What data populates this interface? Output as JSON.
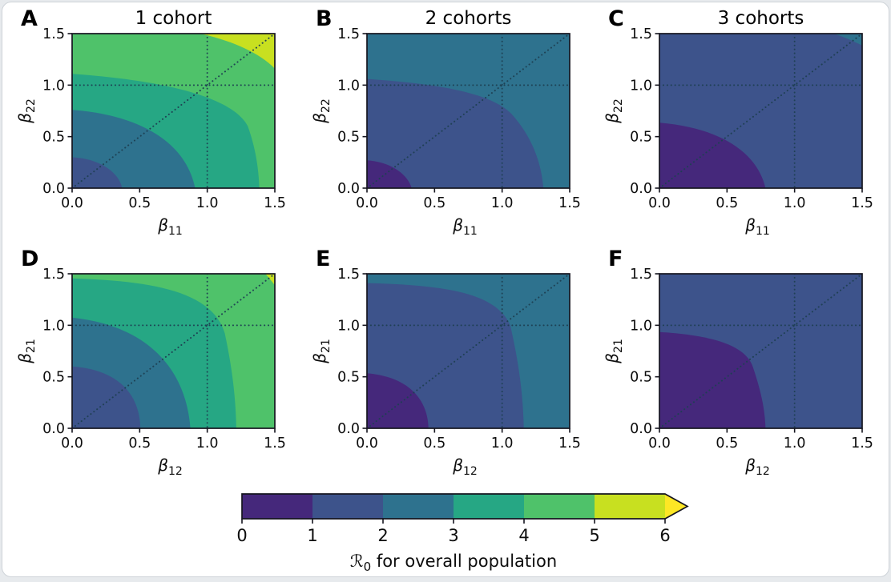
{
  "figure": {
    "background": "#ffffff",
    "border_color": "#ced3d8"
  },
  "chart_data": {
    "type": "contour-grid",
    "rows": 2,
    "cols": 3,
    "contour_levels": [
      1,
      2,
      3,
      4,
      5,
      6
    ],
    "band_colors": [
      "#45287b",
      "#3d538b",
      "#2e728e",
      "#26a784",
      "#4fc26a",
      "#c8e020"
    ],
    "over_color": "#fde725",
    "spine_color": "#15151f",
    "guide_color": "#1d3f52",
    "axis": {
      "range": [
        0,
        1.5
      ],
      "tick_values": [
        0,
        0.5,
        1.0,
        1.5
      ],
      "tick_labels": [
        "0.0",
        "0.5",
        "1.0",
        "1.5"
      ]
    },
    "guides": {
      "vline_x": 1.0,
      "hline_y": 1.0,
      "diagonal": true
    },
    "panels": [
      {
        "letter": "A",
        "title": "1 cohort",
        "xlabel_sym": "β",
        "xlabel_sub": "11",
        "ylabel_sym": "β",
        "ylabel_sub": "22",
        "fills": [
          {
            "kind": "base",
            "band": 5
          },
          {
            "kind": "low",
            "band": 4,
            "level_below": 5,
            "curve": [
              [
                0.95,
                1.5
              ],
              [
                1.18,
                1.43
              ],
              [
                1.38,
                1.32
              ],
              [
                1.5,
                1.16
              ]
            ]
          },
          {
            "kind": "low",
            "band": 3,
            "level_below": 4,
            "curve": [
              [
                0,
                1.11
              ],
              [
                0.75,
                1.04
              ],
              [
                1.2,
                0.86
              ],
              [
                1.3,
                0.6
              ],
              [
                1.36,
                0.38
              ],
              [
                1.38,
                0.18
              ],
              [
                1.385,
                0
              ]
            ]
          },
          {
            "kind": "low",
            "band": 2,
            "level_below": 3,
            "curve": [
              [
                0,
                0.76
              ],
              [
                0.5,
                0.71
              ],
              [
                0.84,
                0.45
              ],
              [
                0.91,
                0
              ]
            ]
          },
          {
            "kind": "low",
            "band": 1,
            "level_below": 2,
            "curve": [
              [
                0,
                0.3
              ],
              [
                0.2,
                0.285
              ],
              [
                0.345,
                0.16
              ],
              [
                0.37,
                0
              ]
            ]
          }
        ]
      },
      {
        "letter": "B",
        "title": "2 cohorts",
        "xlabel_sym": "β",
        "xlabel_sub": "11",
        "ylabel_sym": "β",
        "ylabel_sub": "22",
        "fills": [
          {
            "kind": "base",
            "band": 2
          },
          {
            "kind": "low",
            "band": 1,
            "level_below": 2,
            "curve": [
              [
                0,
                1.06
              ],
              [
                0.55,
                1.01
              ],
              [
                0.92,
                0.92
              ],
              [
                1.07,
                0.72
              ],
              [
                1.22,
                0.5
              ],
              [
                1.29,
                0.25
              ],
              [
                1.305,
                0
              ]
            ]
          },
          {
            "kind": "low",
            "band": 0,
            "level_below": 1,
            "curve": [
              [
                0,
                0.27
              ],
              [
                0.17,
                0.255
              ],
              [
                0.3,
                0.14
              ],
              [
                0.33,
                0
              ]
            ]
          }
        ]
      },
      {
        "letter": "C",
        "title": "3 cohorts",
        "xlabel_sym": "β",
        "xlabel_sub": "11",
        "ylabel_sym": "β",
        "ylabel_sub": "22",
        "fills": [
          {
            "kind": "base",
            "band": 1
          },
          {
            "kind": "corner",
            "band": 2,
            "level_above": 2,
            "curve": [
              [
                1.29,
                1.5
              ],
              [
                1.36,
                1.47
              ],
              [
                1.43,
                1.43
              ],
              [
                1.5,
                1.385
              ]
            ]
          },
          {
            "kind": "low",
            "band": 0,
            "level_below": 1,
            "curve": [
              [
                0,
                0.635
              ],
              [
                0.44,
                0.585
              ],
              [
                0.72,
                0.36
              ],
              [
                0.785,
                0
              ]
            ]
          }
        ]
      },
      {
        "letter": "D",
        "title": "",
        "xlabel_sym": "β",
        "xlabel_sub": "12",
        "ylabel_sym": "β",
        "ylabel_sub": "21",
        "fills": [
          {
            "kind": "base",
            "band": 5
          },
          {
            "kind": "low",
            "band": 4,
            "level_below": 5,
            "curve": [
              [
                1.43,
                1.5
              ],
              [
                1.455,
                1.465
              ],
              [
                1.475,
                1.43
              ],
              [
                1.5,
                1.39
              ]
            ]
          },
          {
            "kind": "low",
            "band": 3,
            "level_below": 4,
            "curve": [
              [
                0,
                1.455
              ],
              [
                0.62,
                1.43
              ],
              [
                1.04,
                1.32
              ],
              [
                1.13,
                0.92
              ],
              [
                1.19,
                0.55
              ],
              [
                1.21,
                0.28
              ],
              [
                1.215,
                0
              ]
            ]
          },
          {
            "kind": "low",
            "band": 2,
            "level_below": 3,
            "curve": [
              [
                0,
                1.075
              ],
              [
                0.54,
                1.0
              ],
              [
                0.84,
                0.6
              ],
              [
                0.875,
                0
              ]
            ]
          },
          {
            "kind": "low",
            "band": 1,
            "level_below": 2,
            "curve": [
              [
                0,
                0.6
              ],
              [
                0.37,
                0.565
              ],
              [
                0.5,
                0.3
              ],
              [
                0.505,
                0
              ]
            ]
          }
        ]
      },
      {
        "letter": "E",
        "title": "",
        "xlabel_sym": "β",
        "xlabel_sub": "12",
        "ylabel_sym": "β",
        "ylabel_sub": "21",
        "fills": [
          {
            "kind": "base",
            "band": 2
          },
          {
            "kind": "low",
            "band": 1,
            "level_below": 2,
            "curve": [
              [
                0,
                1.41
              ],
              [
                0.55,
                1.39
              ],
              [
                0.95,
                1.33
              ],
              [
                1.06,
                1.0
              ],
              [
                1.13,
                0.6
              ],
              [
                1.155,
                0.3
              ],
              [
                1.16,
                0
              ]
            ]
          },
          {
            "kind": "low",
            "band": 0,
            "level_below": 1,
            "curve": [
              [
                0,
                0.535
              ],
              [
                0.31,
                0.5
              ],
              [
                0.45,
                0.28
              ],
              [
                0.455,
                0
              ]
            ]
          }
        ]
      },
      {
        "letter": "F",
        "title": "",
        "xlabel_sym": "β",
        "xlabel_sub": "12",
        "ylabel_sym": "β",
        "ylabel_sub": "21",
        "fills": [
          {
            "kind": "base",
            "band": 1
          },
          {
            "kind": "low",
            "band": 0,
            "level_below": 1,
            "curve": [
              [
                0,
                0.935
              ],
              [
                0.46,
                0.9
              ],
              [
                0.645,
                0.77
              ],
              [
                0.69,
                0.6
              ],
              [
                0.755,
                0.35
              ],
              [
                0.78,
                0.18
              ],
              [
                0.785,
                0
              ]
            ]
          }
        ]
      }
    ],
    "colorbar": {
      "tick_labels": [
        "0",
        "1",
        "2",
        "3",
        "4",
        "5",
        "6"
      ],
      "label_prefix": "ℛ",
      "label_sub": "0",
      "label_suffix": " for overall population"
    }
  }
}
